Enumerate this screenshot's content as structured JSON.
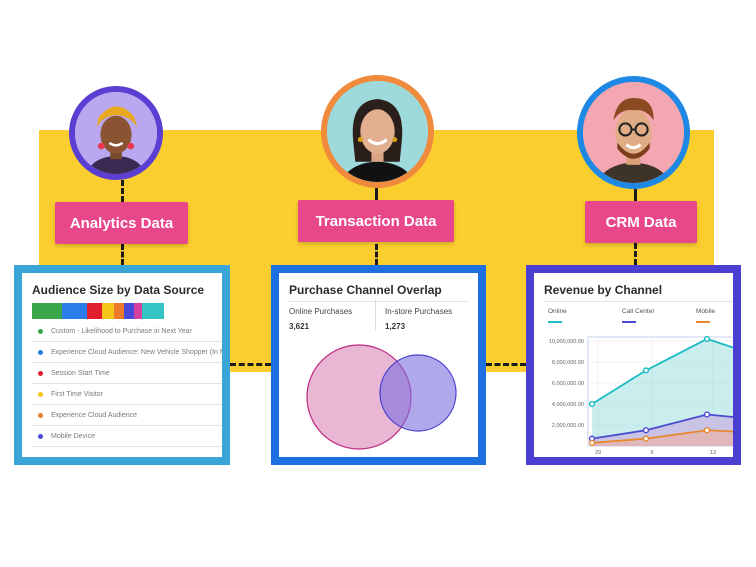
{
  "sources": [
    {
      "label": "Analytics Data"
    },
    {
      "label": "Transaction Data"
    },
    {
      "label": "CRM Data"
    }
  ],
  "audience_card": {
    "title": "Audience Size by Data Source",
    "bar_colors": [
      "#3aa84a",
      "#2b7de9",
      "#e01e2e",
      "#f5c518",
      "#f07a2c",
      "#4a4ad8",
      "#d6409f",
      "#35c4c4"
    ],
    "items": [
      {
        "label": "Custom - Likelihood to Purchase in Next Year",
        "color": "#3aa84a"
      },
      {
        "label": "Experience Cloud Audience: New Vehicle Shopper (In M",
        "color": "#2b7de9"
      },
      {
        "label": "Session Start Time",
        "color": "#e01e2e"
      },
      {
        "label": "First Time Visitor",
        "color": "#f5c518"
      },
      {
        "label": "Experience Cloud Audience",
        "color": "#f07a2c"
      },
      {
        "label": "Mobile Device",
        "color": "#4a4ad8"
      }
    ]
  },
  "overlap_card": {
    "title": "Purchase Channel Overlap",
    "online_label": "Online Purchases",
    "online_value": "3,621",
    "instore_label": "In-store Purchases",
    "instore_value": "1,273"
  },
  "revenue_card": {
    "title": "Revenue by Channel",
    "legend": [
      {
        "name": "Online",
        "color": "#1bbcc5"
      },
      {
        "name": "Call Center",
        "color": "#4b4bd0"
      },
      {
        "name": "Mobile",
        "color": "#e8882c"
      }
    ],
    "y_ticks": [
      "10,000,000.00",
      "8,000,000.00",
      "6,000,000.00",
      "4,000,000.00",
      "2,000,000.00"
    ],
    "x_ticks": [
      "29",
      "6",
      "13"
    ]
  },
  "chart_data": {
    "type": "line",
    "title": "Revenue by Channel",
    "x": [
      "29",
      "6",
      "13"
    ],
    "ylim": [
      0,
      10000000
    ],
    "series": [
      {
        "name": "Online",
        "values": [
          4000000,
          7200000,
          10200000
        ]
      },
      {
        "name": "Call Center",
        "values": [
          700000,
          1500000,
          3000000
        ]
      },
      {
        "name": "Mobile",
        "values": [
          300000,
          700000,
          1500000
        ]
      }
    ]
  }
}
